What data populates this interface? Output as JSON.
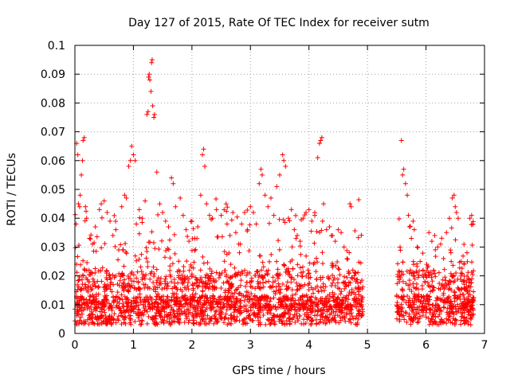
{
  "chart_data": {
    "type": "scatter",
    "title": "Day 127 of 2015, Rate Of TEC Index for receiver sutm",
    "xlabel": "GPS time / hours",
    "ylabel": "ROTI / TECUs",
    "xlim": [
      0,
      7
    ],
    "ylim": [
      0,
      0.1
    ],
    "grid": true,
    "legend": "none",
    "marker": "+",
    "color": "#ff0000",
    "xticks": [
      "0",
      "1",
      "2",
      "3",
      "4",
      "5",
      "6",
      "7"
    ],
    "yticks": [
      "0",
      "0.01",
      "0.02",
      "0.03",
      "0.04",
      "0.05",
      "0.06",
      "0.07",
      "0.08",
      "0.09",
      "0.1"
    ],
    "gap_hours": [
      4.92,
      5.5
    ],
    "series": [
      {
        "name": "ROTI",
        "points": [
          [
            0.02,
            0.038
          ],
          [
            0.03,
            0.066
          ],
          [
            0.05,
            0.062
          ],
          [
            0.06,
            0.045
          ],
          [
            0.08,
            0.044
          ],
          [
            0.09,
            0.048
          ],
          [
            0.11,
            0.055
          ],
          [
            0.13,
            0.06
          ],
          [
            0.14,
            0.067
          ],
          [
            0.16,
            0.068
          ],
          [
            0.18,
            0.044
          ],
          [
            0.2,
            0.04
          ],
          [
            0.25,
            0.033
          ],
          [
            0.3,
            0.031
          ],
          [
            0.35,
            0.037
          ],
          [
            0.42,
            0.043
          ],
          [
            0.45,
            0.045
          ],
          [
            0.5,
            0.046
          ],
          [
            0.55,
            0.042
          ],
          [
            0.6,
            0.039
          ],
          [
            0.65,
            0.034
          ],
          [
            0.7,
            0.036
          ],
          [
            0.75,
            0.029
          ],
          [
            0.8,
            0.044
          ],
          [
            0.85,
            0.048
          ],
          [
            0.88,
            0.047
          ],
          [
            0.92,
            0.058
          ],
          [
            0.95,
            0.06
          ],
          [
            0.97,
            0.065
          ],
          [
            1.0,
            0.062
          ],
          [
            1.03,
            0.06
          ],
          [
            1.05,
            0.038
          ],
          [
            1.1,
            0.043
          ],
          [
            1.15,
            0.04
          ],
          [
            1.2,
            0.046
          ],
          [
            1.23,
            0.076
          ],
          [
            1.25,
            0.077
          ],
          [
            1.26,
            0.089
          ],
          [
            1.27,
            0.09
          ],
          [
            1.28,
            0.088
          ],
          [
            1.3,
            0.084
          ],
          [
            1.31,
            0.094
          ],
          [
            1.32,
            0.095
          ],
          [
            1.33,
            0.079
          ],
          [
            1.35,
            0.075
          ],
          [
            1.36,
            0.076
          ],
          [
            1.4,
            0.056
          ],
          [
            1.45,
            0.045
          ],
          [
            1.5,
            0.042
          ],
          [
            1.55,
            0.039
          ],
          [
            1.6,
            0.037
          ],
          [
            1.65,
            0.054
          ],
          [
            1.68,
            0.052
          ],
          [
            1.72,
            0.044
          ],
          [
            1.8,
            0.047
          ],
          [
            1.85,
            0.041
          ],
          [
            1.9,
            0.036
          ],
          [
            1.95,
            0.032
          ],
          [
            2.0,
            0.039
          ],
          [
            2.05,
            0.033
          ],
          [
            2.1,
            0.037
          ],
          [
            2.15,
            0.048
          ],
          [
            2.18,
            0.062
          ],
          [
            2.2,
            0.064
          ],
          [
            2.22,
            0.058
          ],
          [
            2.25,
            0.045
          ],
          [
            2.3,
            0.041
          ],
          [
            2.35,
            0.04
          ],
          [
            2.42,
            0.043
          ],
          [
            2.5,
            0.041
          ],
          [
            2.55,
            0.043
          ],
          [
            2.6,
            0.038
          ],
          [
            2.65,
            0.034
          ],
          [
            2.7,
            0.042
          ],
          [
            2.75,
            0.035
          ],
          [
            2.8,
            0.031
          ],
          [
            2.85,
            0.038
          ],
          [
            2.9,
            0.042
          ],
          [
            2.95,
            0.036
          ],
          [
            3.0,
            0.044
          ],
          [
            3.05,
            0.042
          ],
          [
            3.1,
            0.038
          ],
          [
            3.15,
            0.052
          ],
          [
            3.18,
            0.057
          ],
          [
            3.2,
            0.055
          ],
          [
            3.25,
            0.048
          ],
          [
            3.3,
            0.044
          ],
          [
            3.35,
            0.047
          ],
          [
            3.4,
            0.041
          ],
          [
            3.45,
            0.051
          ],
          [
            3.5,
            0.055
          ],
          [
            3.55,
            0.062
          ],
          [
            3.57,
            0.06
          ],
          [
            3.6,
            0.058
          ],
          [
            3.65,
            0.04
          ],
          [
            3.7,
            0.043
          ],
          [
            3.75,
            0.036
          ],
          [
            3.8,
            0.034
          ],
          [
            3.85,
            0.032
          ],
          [
            3.9,
            0.04
          ],
          [
            3.95,
            0.042
          ],
          [
            4.0,
            0.043
          ],
          [
            4.05,
            0.039
          ],
          [
            4.1,
            0.041
          ],
          [
            4.15,
            0.061
          ],
          [
            4.18,
            0.066
          ],
          [
            4.2,
            0.067
          ],
          [
            4.22,
            0.068
          ],
          [
            4.25,
            0.045
          ],
          [
            4.3,
            0.036
          ],
          [
            4.35,
            0.037
          ],
          [
            4.4,
            0.034
          ],
          [
            4.45,
            0.032
          ],
          [
            4.5,
            0.036
          ],
          [
            4.55,
            0.035
          ],
          [
            4.6,
            0.03
          ],
          [
            4.65,
            0.026
          ],
          [
            4.7,
            0.045
          ],
          [
            4.72,
            0.044
          ],
          [
            4.75,
            0.022
          ],
          [
            4.8,
            0.018
          ],
          [
            4.85,
            0.012
          ],
          [
            4.9,
            0.01
          ],
          [
            5.55,
            0.02
          ],
          [
            5.58,
            0.067
          ],
          [
            5.6,
            0.055
          ],
          [
            5.62,
            0.057
          ],
          [
            5.65,
            0.052
          ],
          [
            5.68,
            0.048
          ],
          [
            5.7,
            0.041
          ],
          [
            5.72,
            0.037
          ],
          [
            5.75,
            0.033
          ],
          [
            5.78,
            0.039
          ],
          [
            5.8,
            0.036
          ],
          [
            5.85,
            0.03
          ],
          [
            5.9,
            0.025
          ],
          [
            5.95,
            0.022
          ],
          [
            6.0,
            0.02
          ],
          [
            6.05,
            0.035
          ],
          [
            6.1,
            0.032
          ],
          [
            6.15,
            0.034
          ],
          [
            6.2,
            0.03
          ],
          [
            6.25,
            0.031
          ],
          [
            6.3,
            0.026
          ],
          [
            6.35,
            0.035
          ],
          [
            6.4,
            0.04
          ],
          [
            6.45,
            0.047
          ],
          [
            6.48,
            0.048
          ],
          [
            6.5,
            0.044
          ],
          [
            6.52,
            0.042
          ],
          [
            6.55,
            0.04
          ],
          [
            6.6,
            0.025
          ],
          [
            6.65,
            0.024
          ],
          [
            6.7,
            0.028
          ],
          [
            6.75,
            0.04
          ],
          [
            6.78,
            0.041
          ],
          [
            6.8,
            0.038
          ]
        ],
        "dense_band_note": "Thousands of additional measurements form a dense band between 0.003 and 0.02 TECU/min across both observation windows (0-4.9 h and 5.5-6.8 h)."
      }
    ]
  }
}
